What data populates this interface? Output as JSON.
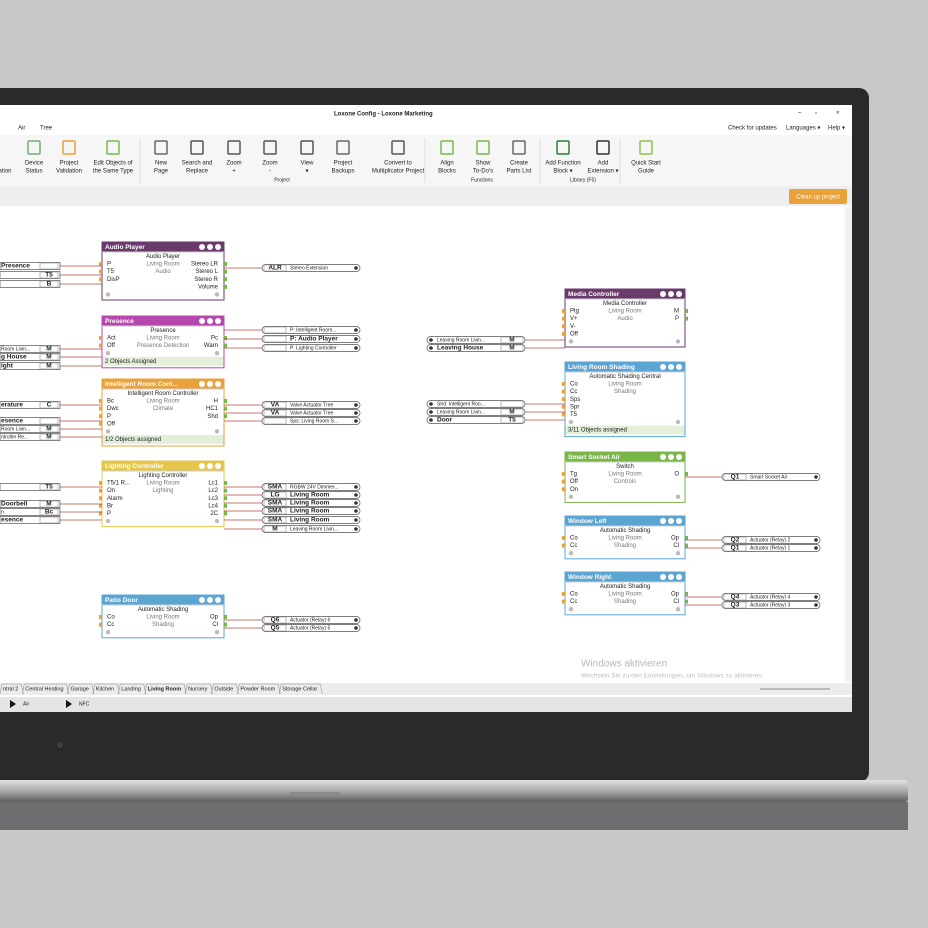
{
  "window": {
    "title": "Loxone Config - Loxone Marketing",
    "menu": [
      "Air",
      "Tree"
    ],
    "right_menu": [
      "Check for updates",
      "Languages ▾",
      "Help ▾"
    ]
  },
  "ribbon": {
    "buttons": [
      {
        "lines": [
          "ation"
        ]
      },
      {
        "lines": [
          "Device",
          "Status"
        ]
      },
      {
        "lines": [
          "Project",
          "Validation"
        ]
      },
      {
        "lines": [
          "Edit Objects of",
          "the Same Type"
        ]
      },
      {
        "lines": [
          "New",
          "Page"
        ]
      },
      {
        "lines": [
          "Search and",
          "Replace"
        ]
      },
      {
        "lines": [
          "Zoom",
          "+"
        ]
      },
      {
        "lines": [
          "Zoom",
          "-"
        ]
      },
      {
        "lines": [
          "View",
          "▾"
        ]
      },
      {
        "lines": [
          "Project",
          "Backups"
        ]
      },
      {
        "lines": [
          "Convert to",
          "Multiplicator Project"
        ]
      },
      {
        "lines": [
          "Align",
          "Blocks"
        ]
      },
      {
        "lines": [
          "Show",
          "To-Do's"
        ]
      },
      {
        "lines": [
          "Create",
          "Parts List"
        ]
      },
      {
        "lines": [
          "Add Function",
          "Block ▾"
        ]
      },
      {
        "lines": [
          "Add",
          "Extension ▾"
        ]
      },
      {
        "lines": [
          "Quick Start",
          "Guide"
        ]
      }
    ],
    "groups": [
      "Project",
      "Functions",
      "Library (F5)"
    ]
  },
  "clean_up": "Clean up project",
  "blocks": [
    {
      "title": "Audio Player",
      "color": "#6a3a6c",
      "subtitle": "Audio Player",
      "middle": [
        "Living Room",
        "Audio"
      ],
      "inputs": [
        "P",
        "T5",
        "DisP"
      ],
      "outputs": [
        "Stereo LR",
        "Stereo L",
        "Stereo R",
        "Volume"
      ]
    },
    {
      "title": "Presence",
      "color": "#b548ad",
      "subtitle": "Presence",
      "middle": [
        "Living Room",
        "Presence Detection"
      ],
      "inputs": [
        "Act",
        "Off"
      ],
      "outputs": [
        "Pc",
        "Warn"
      ],
      "footer": "2 Objects Assigned"
    },
    {
      "title": "Intelligent Room Cont...",
      "color": "#e9a23b",
      "subtitle": "Intelligent Room Controller",
      "middle": [
        "Living Room",
        "Climate"
      ],
      "inputs": [
        "Bc",
        "Dwc",
        "P",
        "Off"
      ],
      "outputs": [
        "H",
        "HC1",
        "Shd"
      ],
      "footer": "1/2 Objects assigned"
    },
    {
      "title": "Lighting Controller",
      "color": "#e5c64c",
      "subtitle": "Lighting Controller",
      "middle": [
        "Living Room",
        "Lighting"
      ],
      "inputs": [
        "T5/1 R...",
        "On",
        "Alarm",
        "Br",
        "P"
      ],
      "outputs": [
        "Lc1",
        "Lc2",
        "Lc3",
        "Lc4",
        "2C"
      ]
    },
    {
      "title": "Patio Door",
      "color": "#5ba5d5",
      "subtitle": "Automatic Shading",
      "middle": [
        "Living Room",
        "Shading"
      ],
      "inputs": [
        "Co",
        "Cc"
      ],
      "outputs": [
        "Op",
        "Cl"
      ]
    },
    {
      "title": "Media Controller",
      "color": "#6a3a6c",
      "subtitle": "Media Controller",
      "middle": [
        "Living Room",
        "Audio"
      ],
      "inputs": [
        "Ptg",
        "V+",
        "V-",
        "Off"
      ],
      "outputs": [
        "M",
        "P"
      ]
    },
    {
      "title": "Living Room Shading",
      "color": "#5ba5d5",
      "subtitle": "Automatic Shading Central",
      "middle": [
        "Living Room",
        "Shading"
      ],
      "inputs": [
        "Co",
        "Cc",
        "Sps",
        "Spr",
        "T5"
      ],
      "outputs": [],
      "footer": "3/11 Objects assigned"
    },
    {
      "title": "Smart Socket Air",
      "color": "#79b547",
      "subtitle": "Switch",
      "middle": [
        "Living Room",
        "Controls"
      ],
      "inputs": [
        "Tg",
        "Off",
        "On"
      ],
      "outputs": [
        "O"
      ]
    },
    {
      "title": "Window Left",
      "color": "#5ba5d5",
      "subtitle": "Automatic Shading",
      "middle": [
        "Living Room",
        "Shading"
      ],
      "inputs": [
        "Co",
        "Cc"
      ],
      "outputs": [
        "Op",
        "Cl"
      ]
    },
    {
      "title": "Window Right",
      "color": "#5ba5d5",
      "subtitle": "Automatic Shading",
      "middle": [
        "Living Room",
        "Shading"
      ],
      "inputs": [
        "Co",
        "Cc"
      ],
      "outputs": [
        "Op",
        "Cl"
      ]
    }
  ],
  "connectors": [
    {
      "code": "ALR",
      "label": "Stereo Extension"
    },
    {
      "label": "P: Intelligent Room..."
    },
    {
      "label": "P: Audio Player"
    },
    {
      "label": "P: Lighting Controller"
    },
    {
      "code": "VA",
      "label": "Valve Actuator Tree"
    },
    {
      "code": "VA",
      "label": "Valve Actuator Tree"
    },
    {
      "label": "Sps: Living Room S..."
    },
    {
      "code": "SMA",
      "label": "RGBW 24V Dimmer..."
    },
    {
      "code": "LG",
      "label": "Living Room"
    },
    {
      "code": "SMA",
      "label": "Living Room"
    },
    {
      "code": "SMA",
      "label": "Living Room"
    },
    {
      "code": "SMA",
      "label": "Living Room"
    },
    {
      "code": "M",
      "label": "Leaving Room Livin..."
    },
    {
      "code": "Q6",
      "label": "Actuator (Relay) 6"
    },
    {
      "code": "Q5",
      "label": "Actuator (Relay) 5"
    },
    {
      "code": "Q1",
      "label": "Smart Socket Air"
    },
    {
      "code": "Q2",
      "label": "Actuator (Relay) 2"
    },
    {
      "code": "Q1",
      "label": "Actuator (Relay) 1"
    },
    {
      "code": "Q4",
      "label": "Actuator (Relay) 4"
    },
    {
      "code": "Q3",
      "label": "Actuator (Relay) 3"
    },
    {
      "code": "M",
      "label": "Leaving Room Livin..."
    },
    {
      "code": "M",
      "label": "Leaving House"
    },
    {
      "label": "Shd: Intelligent Roo..."
    },
    {
      "code": "M",
      "label": "Leaving Room Livin..."
    },
    {
      "code": "T5",
      "label": "Door"
    },
    {
      "label": "Presence"
    },
    {
      "code": "T5"
    },
    {
      "code": "B"
    },
    {
      "code": "M",
      "label": "Room Livin..."
    },
    {
      "code": "M",
      "label": "g House"
    },
    {
      "code": "M",
      "label": "ight"
    },
    {
      "code": "C",
      "label": "erature"
    },
    {
      "label": "esence"
    },
    {
      "code": "M",
      "label": "Room Livin..."
    },
    {
      "code": "M",
      "label": "ntroller Re..."
    },
    {
      "code": "T5"
    },
    {
      "code": "M",
      "label": "Doorbell"
    },
    {
      "code": "Bc",
      "label": "n"
    },
    {
      "label": "esence"
    }
  ],
  "tabs": [
    "ntral 2",
    "Central Heating",
    "Garage",
    "Kitchen",
    "Landing",
    "Living Room",
    "Nursery",
    "Outside",
    "Powder Room",
    "Storage Cellar"
  ],
  "status": [
    "Air",
    "NFC"
  ],
  "watermark": {
    "title": "Windows aktivieren",
    "text": "Wechseln Sie zu den Einstellungen, um Windows zu aktivieren."
  }
}
